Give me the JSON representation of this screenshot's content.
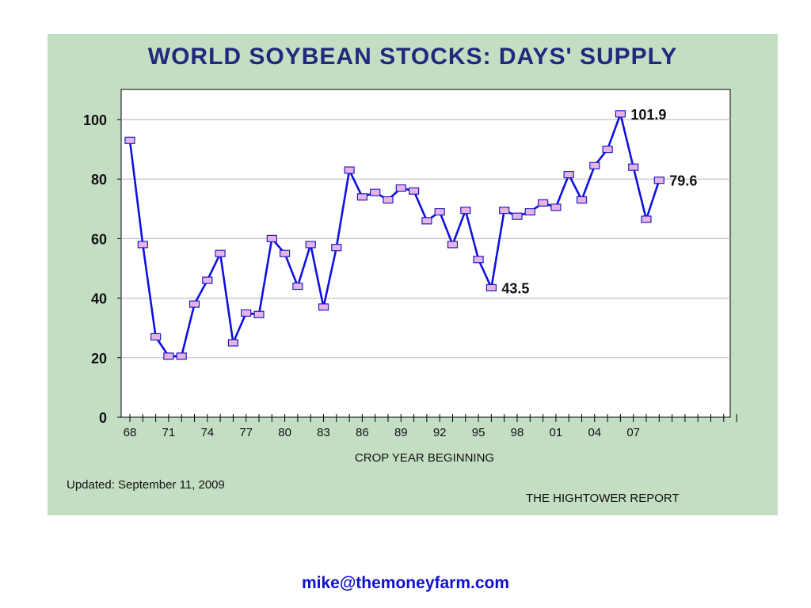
{
  "chart_data": {
    "type": "line",
    "title": "WORLD SOYBEAN STOCKS: DAYS' SUPPLY",
    "xlabel": "CROP YEAR BEGINNING",
    "ylabel": "",
    "x_start": 1968,
    "x_end": 2015,
    "ylim": [
      0,
      110
    ],
    "yticks": [
      0,
      20,
      40,
      60,
      80,
      100
    ],
    "x_tick_labels": [
      {
        "year": 1968,
        "label": "68"
      },
      {
        "year": 1971,
        "label": "71"
      },
      {
        "year": 1974,
        "label": "74"
      },
      {
        "year": 1977,
        "label": "77"
      },
      {
        "year": 1980,
        "label": "80"
      },
      {
        "year": 1983,
        "label": "83"
      },
      {
        "year": 1986,
        "label": "86"
      },
      {
        "year": 1989,
        "label": "89"
      },
      {
        "year": 1992,
        "label": "92"
      },
      {
        "year": 1995,
        "label": "95"
      },
      {
        "year": 1998,
        "label": "98"
      },
      {
        "year": 2001,
        "label": "01"
      },
      {
        "year": 2004,
        "label": "04"
      },
      {
        "year": 2007,
        "label": "07"
      }
    ],
    "grid": "horizontal",
    "legend": "none",
    "series": [
      {
        "color": "#1010e0",
        "marker_fill": "#e8b4e8",
        "x": [
          1968,
          1969,
          1970,
          1971,
          1972,
          1973,
          1974,
          1975,
          1976,
          1977,
          1978,
          1979,
          1980,
          1981,
          1982,
          1983,
          1984,
          1985,
          1986,
          1987,
          1988,
          1989,
          1990,
          1991,
          1992,
          1993,
          1994,
          1995,
          1996,
          1997,
          1998,
          1999,
          2000,
          2001,
          2002,
          2003,
          2004,
          2005,
          2006,
          2007,
          2008,
          2009
        ],
        "y": [
          93,
          58,
          27,
          20.5,
          20.5,
          38,
          46,
          55,
          25,
          35,
          34.5,
          60,
          55,
          44,
          58,
          37,
          57,
          83,
          74,
          75.5,
          73,
          77,
          76,
          66,
          69,
          58,
          69.5,
          53,
          43.5,
          69.5,
          67.5,
          69,
          72,
          70.5,
          81.5,
          73,
          84.5,
          90,
          101.9,
          84,
          66.5,
          79.6
        ]
      }
    ],
    "annotations": [
      {
        "year": 2006,
        "value": 101.9,
        "text": "101.9"
      },
      {
        "year": 1996,
        "value": 43.5,
        "text": "43.5"
      },
      {
        "year": 2009,
        "value": 79.6,
        "text": "79.6"
      }
    ]
  },
  "footer": {
    "updated": "Updated: September 11, 2009",
    "source": "THE HIGHTOWER REPORT"
  },
  "contact": {
    "email": "mike@themoneyfarm.com"
  },
  "colors": {
    "panel_bg": "#c4dec4",
    "title": "#1e2a7c",
    "line": "#1010e0",
    "marker": "#e8b4e8",
    "email": "#1010d0"
  }
}
